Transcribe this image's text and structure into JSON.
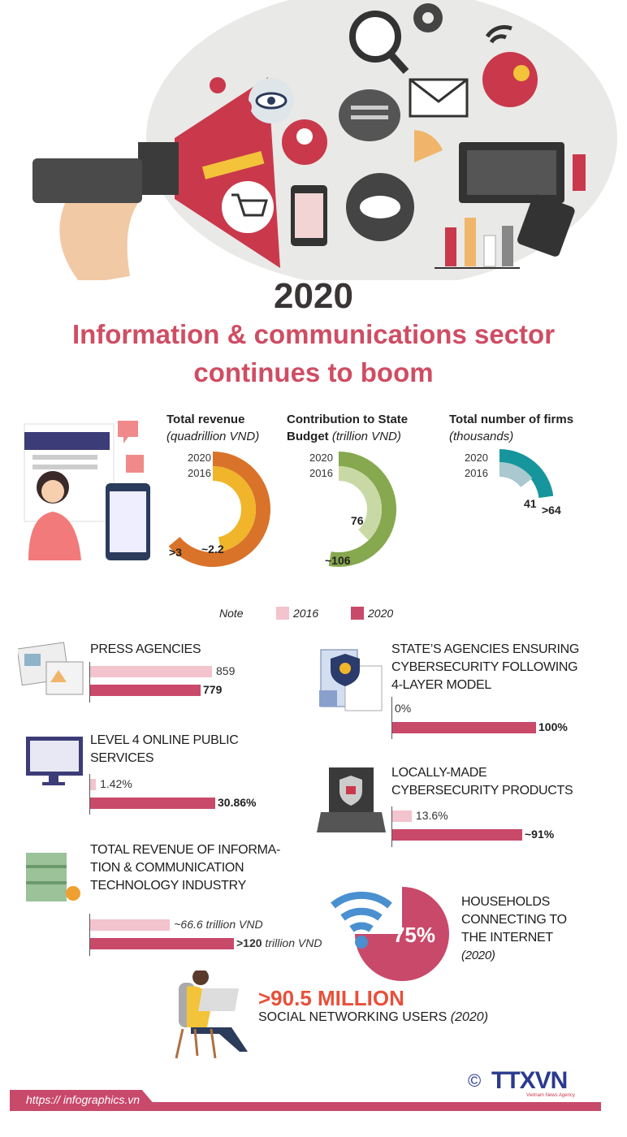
{
  "header": {
    "year": "2020",
    "title_line1": "Information & communications sector",
    "title_line2": "continues to boom"
  },
  "colors": {
    "accent": "#cf4d63",
    "bar_2016": "#f3c3ce",
    "bar_2020": "#c9496a",
    "revenue_2020": "#d9732a",
    "revenue_2016": "#f0b52a",
    "budget_2020": "#86a84e",
    "budget_2016": "#c9d9a6",
    "firms_2020": "#16969c",
    "firms_2016": "#a9c8cf",
    "social_highlight": "#e8503a",
    "logo": "#2b3a8f"
  },
  "charts": [
    {
      "id": "revenue",
      "title": "Total revenue",
      "unit": "(quadrillion VND)",
      "series": [
        {
          "year": "2020",
          "value": 3,
          "label": ">3"
        },
        {
          "year": "2016",
          "value": 2.2,
          "label": "~2.2"
        }
      ]
    },
    {
      "id": "budget",
      "title": "Contribution to State Budget",
      "title_a": "Contribution to State",
      "title_b": "Budget",
      "unit": "(trillion  VND)",
      "series": [
        {
          "year": "2020",
          "value": 106,
          "label": "~106"
        },
        {
          "year": "2016",
          "value": 76,
          "label": "76"
        }
      ]
    },
    {
      "id": "firms",
      "title": "Total number of firms",
      "unit": "(thousands)",
      "series": [
        {
          "year": "2020",
          "value": 64,
          "label": ">64"
        },
        {
          "year": "2016",
          "value": 41,
          "label": "41"
        }
      ]
    }
  ],
  "legend": {
    "note": "Note",
    "y2016": "2016",
    "y2020": "2020"
  },
  "sections": {
    "press": {
      "lines": [
        "PRESS AGENCIES"
      ],
      "v2016": 859,
      "l2016": "859",
      "v2020": 779,
      "l2020": "779"
    },
    "online": {
      "lines": [
        "LEVEL 4 ONLINE PUBLIC",
        "SERVICES"
      ],
      "v2016": 1.42,
      "l2016": "1.42%",
      "v2020": 30.86,
      "l2020": "30.86%"
    },
    "ict": {
      "lines": [
        "TOTAL REVENUE OF INFORMA-",
        "TION & COMMUNICATION",
        "TECHNOLOGY INDUSTRY"
      ],
      "v2016": 66.6,
      "l2016": "~66.6 trillion VND",
      "v2020": 120,
      "l2020_bold": ">120",
      "l2020_rest": " trillion VND"
    },
    "cyber": {
      "lines": [
        "STATE’S AGENCIES ENSURING",
        "CYBERSECURITY FOLLOWING",
        " 4-LAYER MODEL"
      ],
      "v2016": 0,
      "l2016": "0%",
      "v2020": 100,
      "l2020": "100%"
    },
    "local": {
      "lines": [
        "LOCALLY-MADE",
        "CYBERSECURITY PRODUCTS"
      ],
      "v2016": 13.6,
      "l2016": "13.6%",
      "v2020": 91,
      "l2020": "~91%"
    },
    "households": {
      "lines": [
        "HOUSEHOLDS",
        "CONNECTING TO",
        "THE INTERNET"
      ],
      "year": "(2020)",
      "percent": 75,
      "label": "75%"
    },
    "social": {
      "value": ">90.5 MILLION",
      "label": "SOCIAL NETWORKING USERS",
      "year": "(2020)"
    }
  },
  "footer": {
    "url": "https:// infographics.vn",
    "copyright": "©",
    "logo": "TTXVN",
    "logo_sub": "Vietnam News Agency"
  }
}
